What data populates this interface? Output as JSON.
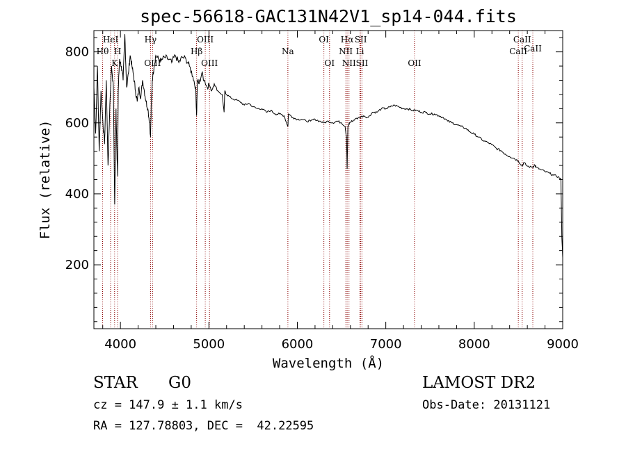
{
  "chart_data": {
    "type": "line",
    "title": "spec-56618-GAC131N42V1_sp14-044.fits",
    "xlabel": "Wavelength (Å)",
    "ylabel": "Flux (relative)",
    "xlim": [
      3700,
      9000
    ],
    "ylim": [
      20,
      860
    ],
    "xticks": [
      4000,
      5000,
      6000,
      7000,
      8000,
      9000
    ],
    "yticks": [
      200,
      400,
      600,
      800
    ],
    "grid": false,
    "line_color": "#000000",
    "marker_color": "#8b0000",
    "series": [
      {
        "x": [
          3700,
          3720,
          3740,
          3760,
          3780,
          3800,
          3820,
          3840,
          3860,
          3880,
          3900,
          3920,
          3935,
          3950,
          3960,
          3968,
          3975,
          3990,
          4010,
          4030,
          4050,
          4070,
          4090,
          4110,
          4130,
          4150,
          4170,
          4190,
          4210,
          4230,
          4250,
          4270,
          4290,
          4310,
          4330,
          4340,
          4350,
          4360,
          4380,
          4400,
          4430,
          4460,
          4500,
          4540,
          4580,
          4620,
          4660,
          4700,
          4740,
          4780,
          4820,
          4850,
          4861,
          4870,
          4890,
          4920,
          4950,
          4980,
          5000,
          5030,
          5060,
          5100,
          5150,
          5172,
          5180,
          5200,
          5250,
          5300,
          5350,
          5400,
          5450,
          5500,
          5550,
          5600,
          5650,
          5700,
          5750,
          5800,
          5850,
          5893,
          5900,
          5950,
          6000,
          6050,
          6100,
          6150,
          6200,
          6250,
          6300,
          6350,
          6400,
          6450,
          6500,
          6540,
          6555,
          6563,
          6572,
          6590,
          6620,
          6650,
          6700,
          6750,
          6800,
          6850,
          6900,
          6950,
          7000,
          7050,
          7100,
          7150,
          7200,
          7250,
          7300,
          7350,
          7400,
          7450,
          7500,
          7550,
          7600,
          7650,
          7700,
          7750,
          7800,
          7850,
          7900,
          7950,
          8000,
          8050,
          8100,
          8150,
          8200,
          8250,
          8300,
          8350,
          8400,
          8450,
          8500,
          8542,
          8560,
          8600,
          8662,
          8680,
          8700,
          8750,
          8800,
          8850,
          8900,
          8950,
          8980,
          8990,
          9000
        ],
        "values": [
          700,
          570,
          760,
          520,
          690,
          610,
          540,
          720,
          480,
          650,
          760,
          700,
          370,
          640,
          520,
          450,
          690,
          780,
          760,
          720,
          850,
          700,
          740,
          790,
          760,
          730,
          690,
          660,
          700,
          670,
          720,
          690,
          660,
          640,
          600,
          560,
          660,
          720,
          760,
          790,
          780,
          775,
          785,
          780,
          770,
          790,
          770,
          785,
          780,
          760,
          730,
          700,
          620,
          720,
          710,
          740,
          720,
          700,
          710,
          690,
          710,
          690,
          680,
          630,
          690,
          680,
          670,
          665,
          660,
          650,
          655,
          645,
          640,
          640,
          630,
          635,
          625,
          625,
          620,
          590,
          625,
          615,
          610,
          610,
          605,
          605,
          610,
          605,
          600,
          605,
          600,
          605,
          600,
          590,
          560,
          470,
          590,
          600,
          605,
          610,
          615,
          620,
          615,
          630,
          630,
          640,
          640,
          645,
          650,
          645,
          640,
          640,
          635,
          635,
          630,
          630,
          625,
          625,
          620,
          615,
          605,
          600,
          595,
          590,
          585,
          575,
          568,
          560,
          550,
          545,
          538,
          528,
          522,
          512,
          505,
          500,
          492,
          478,
          488,
          478,
          474,
          482,
          475,
          468,
          463,
          458,
          452,
          448,
          440,
          280,
          220
        ]
      }
    ],
    "line_markers": [
      {
        "label": "Hθ",
        "wavelength": 3798,
        "row": 2
      },
      {
        "label": "HeI",
        "wavelength": 3889,
        "row": 1
      },
      {
        "label": "K",
        "wavelength": 3934,
        "row": 3
      },
      {
        "label": "H",
        "wavelength": 3968,
        "row": 2
      },
      {
        "label": "Hγ",
        "wavelength": 4340,
        "row": 1
      },
      {
        "label": "OIII",
        "wavelength": 4363,
        "row": 3
      },
      {
        "label": "Hβ",
        "wavelength": 4861,
        "row": 2
      },
      {
        "label": "OIII",
        "wavelength": 4959,
        "row": 1
      },
      {
        "label": "OIII",
        "wavelength": 5007,
        "row": 3
      },
      {
        "label": "Na",
        "wavelength": 5893,
        "row": 2
      },
      {
        "label": "OI",
        "wavelength": 6300,
        "row": 1
      },
      {
        "label": "OI",
        "wavelength": 6364,
        "row": 3
      },
      {
        "label": "Hα",
        "wavelength": 6563,
        "row": 1
      },
      {
        "label": "NII",
        "wavelength": 6548,
        "row": 2
      },
      {
        "label": "NII",
        "wavelength": 6584,
        "row": 3
      },
      {
        "label": "SII",
        "wavelength": 6717,
        "row": 1
      },
      {
        "label": "Li",
        "wavelength": 6708,
        "row": 2
      },
      {
        "label": "SII",
        "wavelength": 6731,
        "row": 3
      },
      {
        "label": "OII",
        "wavelength": 7325,
        "row": 3
      },
      {
        "label": "CaII",
        "wavelength": 8542,
        "row": 1
      },
      {
        "label": "CaII",
        "wavelength": 8498,
        "row": 2
      },
      {
        "label": "CaII",
        "wavelength": 8662,
        "row": 0
      }
    ]
  },
  "info": {
    "object_class": "STAR",
    "subclass": "G0",
    "survey": "LAMOST DR2",
    "cz": "cz = 147.9 ± 1.1 km/s",
    "obs_date": "Obs-Date: 20131121",
    "coords": "RA = 127.78803, DEC =  42.22595"
  }
}
